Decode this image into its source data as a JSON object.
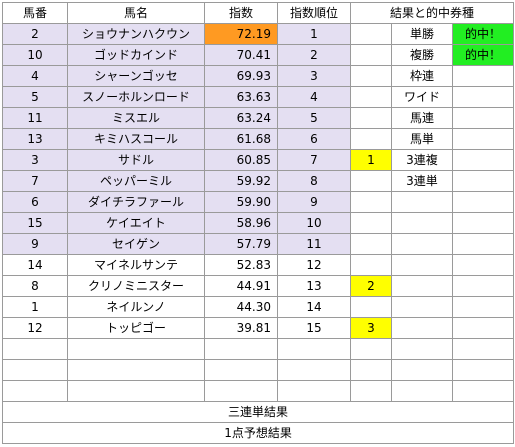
{
  "headers": {
    "umaban": "馬番",
    "name": "馬名",
    "index": "指数",
    "rank": "指数順位",
    "result": "結果と的中券種"
  },
  "rows": [
    {
      "umaban": "2",
      "name": "ショウナンハクウン",
      "index": "72.19",
      "rank": "1",
      "place": "",
      "bet": "単勝",
      "hit": "的中！"
    },
    {
      "umaban": "10",
      "name": "ゴッドカインド",
      "index": "70.41",
      "rank": "2",
      "place": "",
      "bet": "複勝",
      "hit": "的中！"
    },
    {
      "umaban": "4",
      "name": "シャーンゴッセ",
      "index": "69.93",
      "rank": "3",
      "place": "",
      "bet": "枠連",
      "hit": ""
    },
    {
      "umaban": "5",
      "name": "スノーホルンロード",
      "index": "63.63",
      "rank": "4",
      "place": "",
      "bet": "ワイド",
      "hit": ""
    },
    {
      "umaban": "11",
      "name": "ミスエル",
      "index": "63.24",
      "rank": "5",
      "place": "",
      "bet": "馬連",
      "hit": ""
    },
    {
      "umaban": "13",
      "name": "キミハスコール",
      "index": "61.68",
      "rank": "6",
      "place": "",
      "bet": "馬単",
      "hit": ""
    },
    {
      "umaban": "3",
      "name": "サドル",
      "index": "60.85",
      "rank": "7",
      "place": "1",
      "bet": "3連複",
      "hit": ""
    },
    {
      "umaban": "7",
      "name": "ペッパーミル",
      "index": "59.92",
      "rank": "8",
      "place": "",
      "bet": "3連単",
      "hit": ""
    },
    {
      "umaban": "6",
      "name": "ダイチラファール",
      "index": "59.90",
      "rank": "9",
      "place": "",
      "bet": "",
      "hit": ""
    },
    {
      "umaban": "15",
      "name": "ケイエイト",
      "index": "58.96",
      "rank": "10",
      "place": "",
      "bet": "",
      "hit": ""
    },
    {
      "umaban": "9",
      "name": "セイゲン",
      "index": "57.79",
      "rank": "11",
      "place": "",
      "bet": "",
      "hit": ""
    },
    {
      "umaban": "14",
      "name": "マイネルサンテ",
      "index": "52.83",
      "rank": "12",
      "place": "",
      "bet": "",
      "hit": ""
    },
    {
      "umaban": "8",
      "name": "クリノミニスター",
      "index": "44.91",
      "rank": "13",
      "place": "2",
      "bet": "",
      "hit": ""
    },
    {
      "umaban": "1",
      "name": "ネイルンノ",
      "index": "44.30",
      "rank": "14",
      "place": "",
      "bet": "",
      "hit": ""
    },
    {
      "umaban": "12",
      "name": "トッピゴー",
      "index": "39.81",
      "rank": "15",
      "place": "3",
      "bet": "",
      "hit": ""
    }
  ],
  "highlight_rows": 11,
  "colors": {
    "highlight": "#e4dff2",
    "top_index": "#ff9a22",
    "place": "#ffff00",
    "hit": "#22ee22"
  },
  "footer": {
    "sanrentan": "三連単結果",
    "one_point": "1点予想結果"
  }
}
